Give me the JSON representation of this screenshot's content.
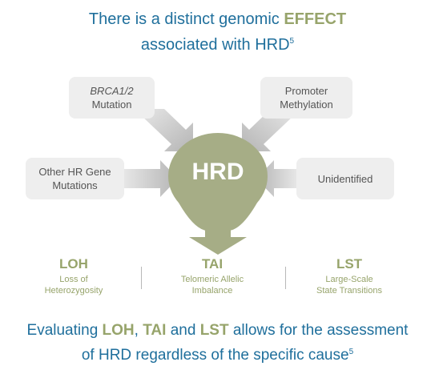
{
  "title": {
    "line1_prefix": "There is a distinct genomic ",
    "line1_accent": "EFFECT",
    "line2": "associated with HRD",
    "line2_sup": "5"
  },
  "causes": {
    "brca": {
      "line1": "BRCA1/2",
      "line2": "Mutation"
    },
    "promoter": {
      "line1": "Promoter",
      "line2": "Methylation"
    },
    "other": {
      "line1": "Other HR Gene",
      "line2": "Mutations"
    },
    "unidentified": {
      "line1": "Unidentified"
    }
  },
  "center": {
    "label": "HRD"
  },
  "metrics": [
    {
      "abbr": "LOH",
      "line1": "Loss of",
      "line2": "Heterozygosity"
    },
    {
      "abbr": "TAI",
      "line1": "Telomeric Allelic",
      "line2": "Imbalance"
    },
    {
      "abbr": "LST",
      "line1": "Large-Scale",
      "line2": "State Transitions"
    }
  ],
  "footer": {
    "prefix": "Evaluating ",
    "loh": "LOH",
    "comma": ", ",
    "tai": "TAI",
    "and": " and ",
    "lst": "LST",
    "rest1": " allows for the assessment",
    "line2": "of HRD regardless of the specific cause",
    "line2_sup": "5"
  },
  "colors": {
    "title_blue": "#1f6f9c",
    "accent_green": "#97a46b",
    "hrd_fill": "#a6ad86",
    "box_grey": "#eeeeee",
    "arrow_grey": "#c3c3c3"
  }
}
